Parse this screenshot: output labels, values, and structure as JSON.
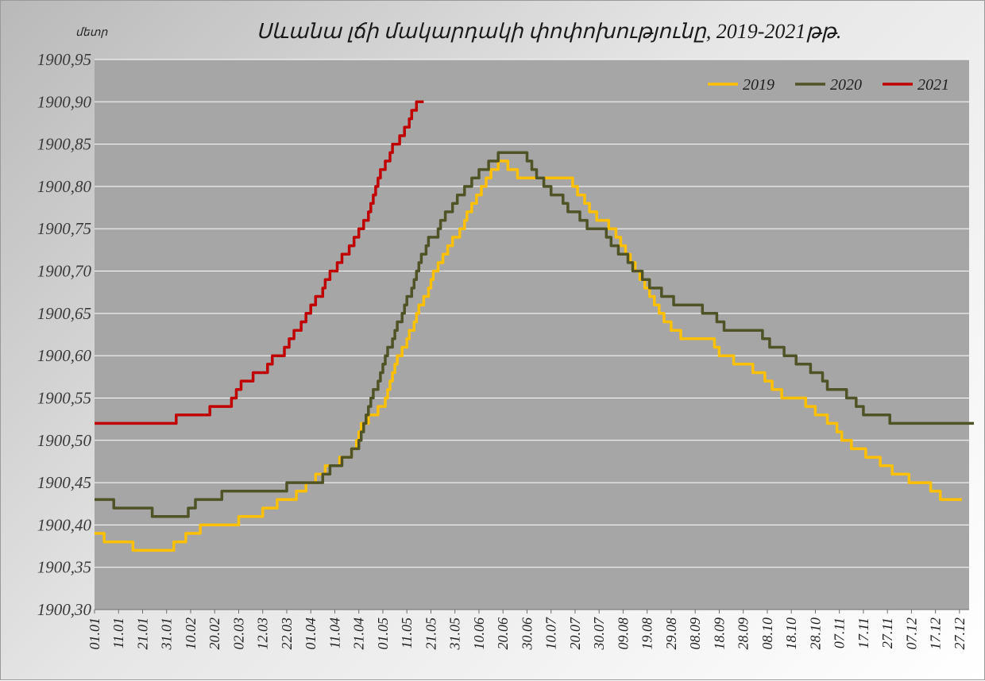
{
  "chart_data": {
    "type": "line",
    "title": "Սևանա լճի մակարդակի փոփոխությունը, 2019-2021թթ.",
    "ylabel": "մետր",
    "xlabel": "",
    "ylim": [
      1900.3,
      1900.95
    ],
    "yticks": [
      "1900,95",
      "1900,90",
      "1900,85",
      "1900,80",
      "1900,75",
      "1900,70",
      "1900,65",
      "1900,60",
      "1900,55",
      "1900,50",
      "1900,45",
      "1900,40",
      "1900,35",
      "1900,30"
    ],
    "xtick_labels": [
      "01.01",
      "11.01",
      "21.01",
      "31.01",
      "10.02",
      "20.02",
      "02.03",
      "12.03",
      "22.03",
      "01.04",
      "11.04",
      "21.04",
      "01.05",
      "11.05",
      "21.05",
      "31.05",
      "10.06",
      "20.06",
      "30.06",
      "10.07",
      "20.07",
      "30.07",
      "09.08",
      "19.08",
      "29.08",
      "08.09",
      "18.09",
      "28.09",
      "08.10",
      "18.10",
      "28.10",
      "07.11",
      "17.11",
      "27.11",
      "07.12",
      "17.12",
      "27.12"
    ],
    "legend_position": "top-right",
    "grid": true,
    "colors": {
      "plot_bg": "#a6a6a6",
      "grid": "#ffffff",
      "2019": "#ffc000",
      "2020": "#4f5326",
      "2021": "#c00000"
    },
    "series": [
      {
        "name": "2019",
        "points": [
          [
            0,
            1900.39
          ],
          [
            4,
            1900.38
          ],
          [
            16,
            1900.37
          ],
          [
            33,
            1900.38
          ],
          [
            38,
            1900.39
          ],
          [
            44,
            1900.4
          ],
          [
            60,
            1900.41
          ],
          [
            70,
            1900.42
          ],
          [
            76,
            1900.43
          ],
          [
            84,
            1900.44
          ],
          [
            88,
            1900.45
          ],
          [
            92,
            1900.46
          ],
          [
            96,
            1900.47
          ],
          [
            102,
            1900.48
          ],
          [
            107,
            1900.49
          ],
          [
            109,
            1900.5
          ],
          [
            110,
            1900.51
          ],
          [
            111,
            1900.52
          ],
          [
            114,
            1900.53
          ],
          [
            118,
            1900.54
          ],
          [
            121,
            1900.55
          ],
          [
            122,
            1900.56
          ],
          [
            123,
            1900.57
          ],
          [
            124,
            1900.58
          ],
          [
            125,
            1900.59
          ],
          [
            126,
            1900.6
          ],
          [
            128,
            1900.61
          ],
          [
            130,
            1900.62
          ],
          [
            131,
            1900.63
          ],
          [
            133,
            1900.64
          ],
          [
            134,
            1900.65
          ],
          [
            135,
            1900.66
          ],
          [
            137,
            1900.67
          ],
          [
            139,
            1900.68
          ],
          [
            140,
            1900.69
          ],
          [
            141,
            1900.7
          ],
          [
            143,
            1900.71
          ],
          [
            145,
            1900.72
          ],
          [
            147,
            1900.73
          ],
          [
            149,
            1900.74
          ],
          [
            152,
            1900.75
          ],
          [
            154,
            1900.76
          ],
          [
            155,
            1900.77
          ],
          [
            157,
            1900.78
          ],
          [
            159,
            1900.79
          ],
          [
            161,
            1900.8
          ],
          [
            163,
            1900.81
          ],
          [
            165,
            1900.82
          ],
          [
            168,
            1900.83
          ],
          [
            172,
            1900.82
          ],
          [
            176,
            1900.81
          ],
          [
            199,
            1900.8
          ],
          [
            201,
            1900.79
          ],
          [
            204,
            1900.78
          ],
          [
            206,
            1900.77
          ],
          [
            209,
            1900.76
          ],
          [
            214,
            1900.75
          ],
          [
            217,
            1900.74
          ],
          [
            219,
            1900.73
          ],
          [
            221,
            1900.72
          ],
          [
            223,
            1900.71
          ],
          [
            225,
            1900.7
          ],
          [
            227,
            1900.69
          ],
          [
            229,
            1900.68
          ],
          [
            231,
            1900.67
          ],
          [
            233,
            1900.66
          ],
          [
            235,
            1900.65
          ],
          [
            237,
            1900.64
          ],
          [
            240,
            1900.63
          ],
          [
            244,
            1900.62
          ],
          [
            258,
            1900.61
          ],
          [
            260,
            1900.6
          ],
          [
            266,
            1900.59
          ],
          [
            274,
            1900.58
          ],
          [
            279,
            1900.57
          ],
          [
            282,
            1900.56
          ],
          [
            286,
            1900.55
          ],
          [
            296,
            1900.54
          ],
          [
            300,
            1900.53
          ],
          [
            305,
            1900.52
          ],
          [
            309,
            1900.51
          ],
          [
            311,
            1900.5
          ],
          [
            315,
            1900.49
          ],
          [
            321,
            1900.48
          ],
          [
            327,
            1900.47
          ],
          [
            332,
            1900.46
          ],
          [
            339,
            1900.45
          ],
          [
            348,
            1900.44
          ],
          [
            352,
            1900.43
          ],
          [
            361,
            1900.43
          ]
        ]
      },
      {
        "name": "2020",
        "points": [
          [
            0,
            1900.43
          ],
          [
            8,
            1900.42
          ],
          [
            24,
            1900.41
          ],
          [
            39,
            1900.42
          ],
          [
            42,
            1900.43
          ],
          [
            53,
            1900.44
          ],
          [
            80,
            1900.45
          ],
          [
            95,
            1900.46
          ],
          [
            98,
            1900.47
          ],
          [
            103,
            1900.48
          ],
          [
            107,
            1900.49
          ],
          [
            110,
            1900.5
          ],
          [
            111,
            1900.51
          ],
          [
            112,
            1900.52
          ],
          [
            113,
            1900.53
          ],
          [
            114,
            1900.54
          ],
          [
            115,
            1900.55
          ],
          [
            116,
            1900.56
          ],
          [
            118,
            1900.57
          ],
          [
            119,
            1900.58
          ],
          [
            120,
            1900.59
          ],
          [
            121,
            1900.6
          ],
          [
            122,
            1900.61
          ],
          [
            124,
            1900.62
          ],
          [
            125,
            1900.63
          ],
          [
            126,
            1900.64
          ],
          [
            128,
            1900.65
          ],
          [
            129,
            1900.66
          ],
          [
            130,
            1900.67
          ],
          [
            132,
            1900.68
          ],
          [
            133,
            1900.69
          ],
          [
            134,
            1900.7
          ],
          [
            135,
            1900.71
          ],
          [
            136,
            1900.72
          ],
          [
            138,
            1900.73
          ],
          [
            139,
            1900.74
          ],
          [
            143,
            1900.75
          ],
          [
            144,
            1900.76
          ],
          [
            146,
            1900.77
          ],
          [
            149,
            1900.78
          ],
          [
            151,
            1900.79
          ],
          [
            154,
            1900.8
          ],
          [
            157,
            1900.81
          ],
          [
            160,
            1900.82
          ],
          [
            164,
            1900.83
          ],
          [
            168,
            1900.84
          ],
          [
            180,
            1900.83
          ],
          [
            182,
            1900.82
          ],
          [
            184,
            1900.81
          ],
          [
            187,
            1900.8
          ],
          [
            190,
            1900.79
          ],
          [
            195,
            1900.78
          ],
          [
            197,
            1900.77
          ],
          [
            202,
            1900.76
          ],
          [
            205,
            1900.75
          ],
          [
            213,
            1900.74
          ],
          [
            215,
            1900.73
          ],
          [
            218,
            1900.72
          ],
          [
            222,
            1900.71
          ],
          [
            224,
            1900.7
          ],
          [
            228,
            1900.69
          ],
          [
            231,
            1900.68
          ],
          [
            236,
            1900.67
          ],
          [
            241,
            1900.66
          ],
          [
            253,
            1900.65
          ],
          [
            259,
            1900.64
          ],
          [
            262,
            1900.63
          ],
          [
            278,
            1900.62
          ],
          [
            281,
            1900.61
          ],
          [
            287,
            1900.6
          ],
          [
            292,
            1900.59
          ],
          [
            298,
            1900.58
          ],
          [
            303,
            1900.57
          ],
          [
            305,
            1900.56
          ],
          [
            313,
            1900.55
          ],
          [
            317,
            1900.54
          ],
          [
            320,
            1900.53
          ],
          [
            331,
            1900.52
          ],
          [
            366,
            1900.52
          ]
        ]
      },
      {
        "name": "2021",
        "points": [
          [
            0,
            1900.52
          ],
          [
            34,
            1900.53
          ],
          [
            48,
            1900.54
          ],
          [
            57,
            1900.55
          ],
          [
            59,
            1900.56
          ],
          [
            61,
            1900.57
          ],
          [
            66,
            1900.58
          ],
          [
            72,
            1900.59
          ],
          [
            74,
            1900.6
          ],
          [
            79,
            1900.61
          ],
          [
            81,
            1900.62
          ],
          [
            83,
            1900.63
          ],
          [
            86,
            1900.64
          ],
          [
            88,
            1900.65
          ],
          [
            90,
            1900.66
          ],
          [
            92,
            1900.67
          ],
          [
            95,
            1900.68
          ],
          [
            96,
            1900.69
          ],
          [
            98,
            1900.7
          ],
          [
            101,
            1900.71
          ],
          [
            103,
            1900.72
          ],
          [
            106,
            1900.73
          ],
          [
            108,
            1900.74
          ],
          [
            110,
            1900.75
          ],
          [
            112,
            1900.76
          ],
          [
            114,
            1900.77
          ],
          [
            115,
            1900.78
          ],
          [
            116,
            1900.79
          ],
          [
            117,
            1900.8
          ],
          [
            118,
            1900.81
          ],
          [
            119,
            1900.82
          ],
          [
            121,
            1900.83
          ],
          [
            123,
            1900.84
          ],
          [
            124,
            1900.85
          ],
          [
            127,
            1900.86
          ],
          [
            129,
            1900.87
          ],
          [
            131,
            1900.88
          ],
          [
            132,
            1900.89
          ],
          [
            134,
            1900.9
          ],
          [
            137,
            1900.9
          ]
        ]
      }
    ]
  }
}
